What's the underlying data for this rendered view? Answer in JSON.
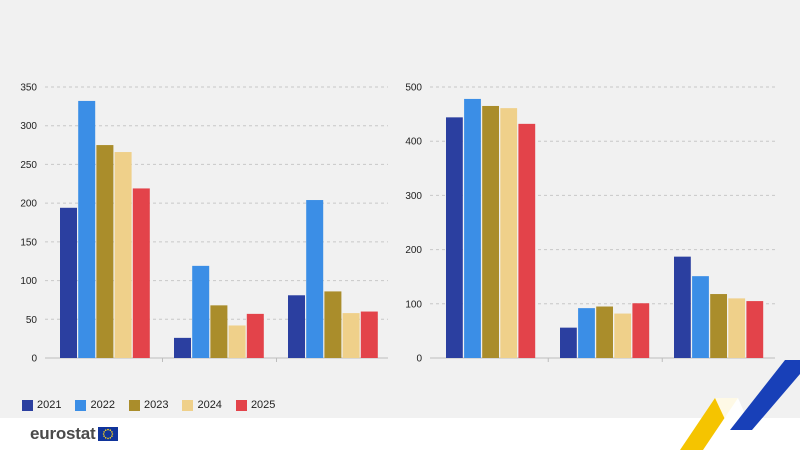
{
  "chart_data": [
    {
      "type": "bar",
      "categories": [
        "",
        "",
        ""
      ],
      "series": [
        {
          "name": "2021",
          "color": "#2b3fa0",
          "values": [
            194,
            26,
            81
          ]
        },
        {
          "name": "2022",
          "color": "#3b8ee6",
          "values": [
            332,
            119,
            204
          ]
        },
        {
          "name": "2023",
          "color": "#aa8d2b",
          "values": [
            275,
            68,
            86
          ]
        },
        {
          "name": "2024",
          "color": "#efd08a",
          "values": [
            266,
            42,
            58
          ]
        },
        {
          "name": "2025",
          "color": "#e3434a",
          "values": [
            219,
            57,
            60
          ]
        }
      ],
      "ylim": [
        0,
        350
      ],
      "yticks": [
        "0",
        "50",
        "100",
        "150",
        "200",
        "250",
        "300",
        "350"
      ],
      "grid": true,
      "legend": "bottom-left"
    },
    {
      "type": "bar",
      "categories": [
        "",
        "",
        ""
      ],
      "series": [
        {
          "name": "2021",
          "color": "#2b3fa0",
          "values": [
            444,
            56,
            187
          ]
        },
        {
          "name": "2022",
          "color": "#3b8ee6",
          "values": [
            478,
            92,
            151
          ]
        },
        {
          "name": "2023",
          "color": "#aa8d2b",
          "values": [
            465,
            95,
            118
          ]
        },
        {
          "name": "2024",
          "color": "#efd08a",
          "values": [
            461,
            82,
            110
          ]
        },
        {
          "name": "2025",
          "color": "#e3434a",
          "values": [
            432,
            101,
            105
          ]
        }
      ],
      "ylim": [
        0,
        500
      ],
      "yticks": [
        "0",
        "100",
        "200",
        "300",
        "400",
        "500"
      ],
      "grid": true
    }
  ],
  "legend": {
    "items": [
      {
        "label": "2021",
        "color": "#2b3fa0"
      },
      {
        "label": "2022",
        "color": "#3b8ee6"
      },
      {
        "label": "2023",
        "color": "#aa8d2b"
      },
      {
        "label": "2024",
        "color": "#efd08a"
      },
      {
        "label": "2025",
        "color": "#e3434a"
      }
    ]
  },
  "footer": {
    "brand": "eurostat",
    "flag_icon": "eu-flag-icon",
    "accent_colors": {
      "yellow": "#f5c400",
      "blue": "#1840b8"
    }
  }
}
